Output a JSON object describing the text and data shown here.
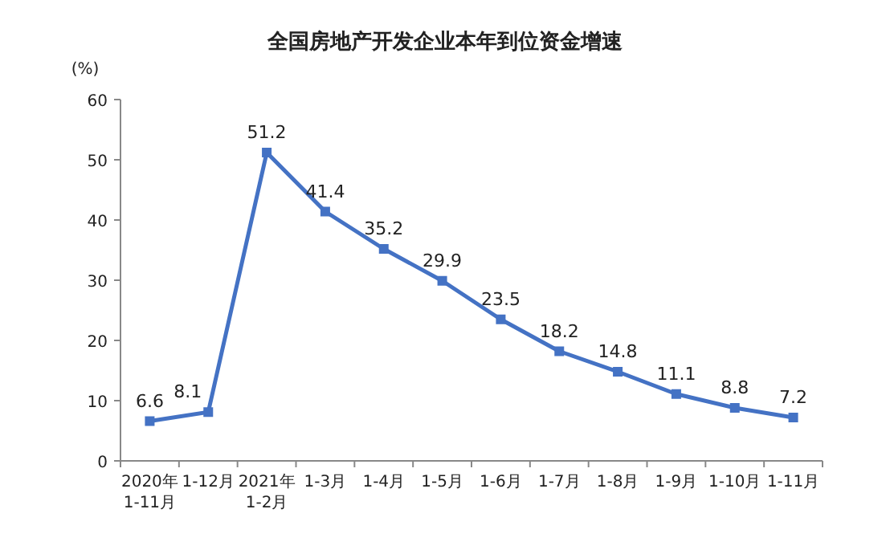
{
  "chart_data": {
    "type": "line",
    "title": "全国房地产开发企业本年到位资金增速",
    "ylabel": "(%)",
    "categories": [
      "2020年\n1-11月",
      "1-12月",
      "2021年\n1-2月",
      "1-3月",
      "1-4月",
      "1-5月",
      "1-6月",
      "1-7月",
      "1-8月",
      "1-9月",
      "1-10月",
      "1-11月"
    ],
    "series": [
      {
        "color": "#4472c4",
        "values": [
          6.6,
          8.1,
          51.2,
          41.4,
          35.2,
          29.9,
          23.5,
          18.2,
          14.8,
          11.1,
          8.8,
          7.2
        ]
      }
    ],
    "ylim": [
      0,
      60
    ],
    "yticks": [
      0,
      10,
      20,
      30,
      40,
      50,
      60
    ],
    "data_labels": true,
    "marker": "square",
    "line_style": "solid",
    "grid": false
  }
}
